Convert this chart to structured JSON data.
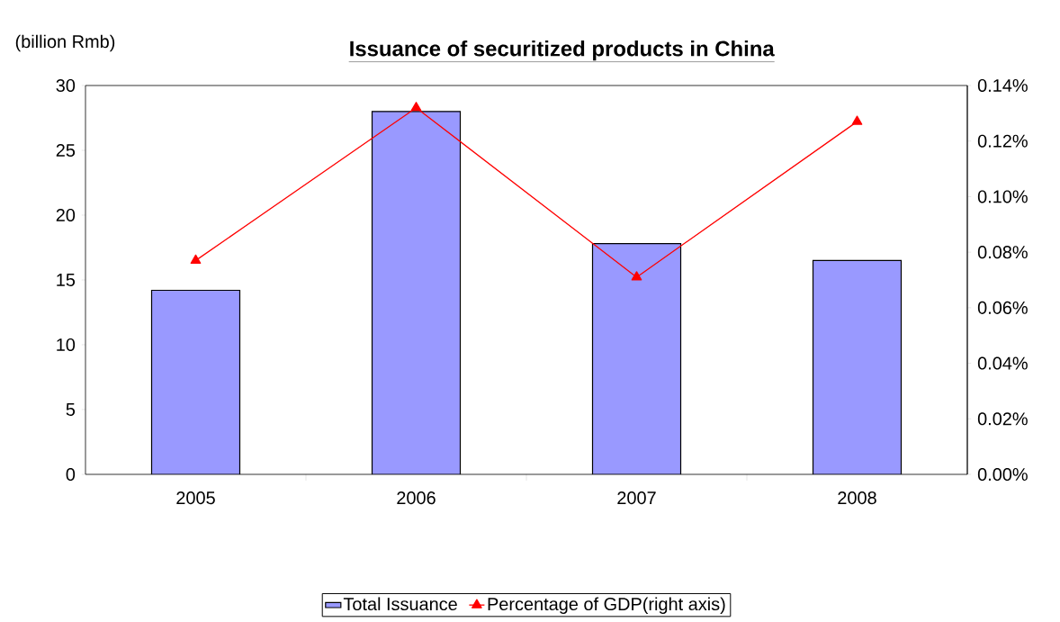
{
  "chart_data": {
    "type": "bar",
    "title": "Issuance of securitized products in China",
    "ylabel": "(billion Rmb)",
    "categories": [
      "2005",
      "2006",
      "2007",
      "2008"
    ],
    "series": [
      {
        "name": "Total Issuance",
        "color": "#9999ff",
        "values": [
          14.2,
          28.0,
          17.8,
          16.5
        ]
      },
      {
        "name": "Percentage of GDP(right axis)",
        "type": "line",
        "axis": "y2",
        "color": "#ff0000",
        "values": [
          0.077,
          0.132,
          0.071,
          0.127
        ]
      }
    ],
    "ylim": [
      0,
      30
    ],
    "yticks": [
      0,
      5,
      10,
      15,
      20,
      25,
      30
    ],
    "y2lim": [
      0,
      0.14
    ],
    "y2ticks": [
      {
        "value": 0,
        "label": "0.00%"
      },
      {
        "value": 0.02,
        "label": "0.02%"
      },
      {
        "value": 0.04,
        "label": "0.04%"
      },
      {
        "value": 0.06,
        "label": "0.06%"
      },
      {
        "value": 0.08,
        "label": "0.08%"
      },
      {
        "value": 0.1,
        "label": "0.10%"
      },
      {
        "value": 0.12,
        "label": "0.12%"
      },
      {
        "value": 0.14,
        "label": "0.14%"
      }
    ],
    "marker": "triangle",
    "legend": "bottom",
    "grid": false
  }
}
